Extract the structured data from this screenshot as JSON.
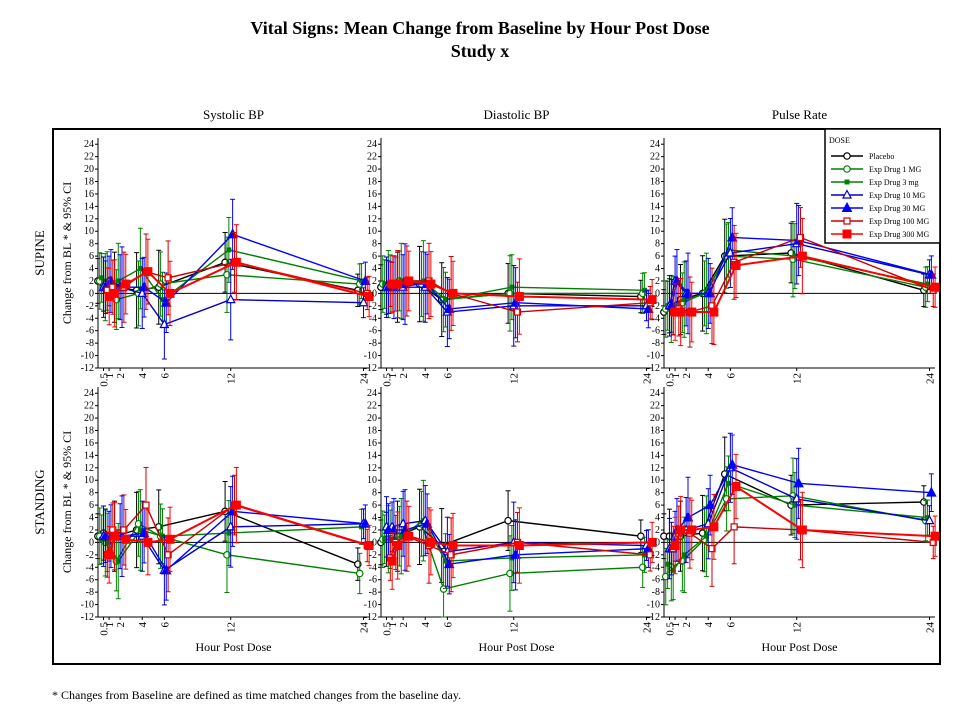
{
  "title": "Vital Signs: Mean Change from Baseline by Hour Post Dose",
  "subtitle": "Study x",
  "footnote": "* Changes from Baseline are defined as time matched changes from the baseline day.",
  "chart_data": {
    "type": "line",
    "ylabel": "Change from BL * & 95% CI",
    "xlabel": "Hour Post Dose",
    "columns": [
      "Systolic BP",
      "Diastolic BP",
      "Pulse Rate"
    ],
    "rows": [
      "SUPINE",
      "STANDING"
    ],
    "ylim": [
      -12,
      25
    ],
    "yticks": [
      24,
      22,
      20,
      18,
      16,
      14,
      12,
      10,
      8,
      6,
      4,
      2,
      0,
      -2,
      -4,
      -6,
      -8,
      -10,
      -12
    ],
    "xticks": [
      {
        "v": 0.5,
        "label": "0.5"
      },
      {
        "v": 1,
        "label": "1"
      },
      {
        "v": 2,
        "label": "2"
      },
      {
        "v": 4,
        "label": "4"
      },
      {
        "v": 6,
        "label": "6"
      },
      {
        "v": 12,
        "label": "12"
      },
      {
        "v": 24,
        "label": "24"
      }
    ],
    "legend": {
      "title": "DOSE",
      "placement": "top-right",
      "entries": [
        {
          "name": "Placebo",
          "color": "#000000",
          "marker": "circle"
        },
        {
          "name": "Exp Drug 1 MG",
          "color": "#008000",
          "marker": "circle"
        },
        {
          "name": "Exp Drug 3 mg",
          "color": "#008000",
          "marker": "square"
        },
        {
          "name": "Exp Drug 10 MG",
          "color": "#0000CC",
          "marker": "triangle-open"
        },
        {
          "name": "Exp Drug 30 MG",
          "color": "#0000FF",
          "marker": "triangle"
        },
        {
          "name": "Exp Drug 100 MG",
          "color": "#CC0000",
          "marker": "square-open"
        },
        {
          "name": "Exp Drug 300 MG",
          "color": "#FF0000",
          "marker": "square"
        }
      ]
    },
    "x": [
      0.5,
      1,
      2,
      4,
      6,
      12,
      24
    ],
    "panels": [
      {
        "row": "SUPINE",
        "column": "Systolic BP",
        "series": [
          {
            "name": "Placebo",
            "values": [
              2,
              1.5,
              1,
              0.5,
              1,
              5,
              0.5
            ]
          },
          {
            "name": "Exp Drug 1 MG",
            "values": [
              2,
              1,
              -1,
              0,
              1.5,
              3,
              1.5
            ]
          },
          {
            "name": "Exp Drug 3 mg",
            "values": [
              2.5,
              2,
              2,
              4,
              -1,
              7,
              2
            ]
          },
          {
            "name": "Exp Drug 10 MG",
            "values": [
              1,
              2,
              1,
              0,
              -5,
              -1,
              -1.5
            ]
          },
          {
            "name": "Exp Drug 30 MG",
            "values": [
              1,
              2,
              1,
              1,
              -1.5,
              9.5,
              2
            ]
          },
          {
            "name": "Exp Drug 100 MG",
            "values": [
              0.5,
              1,
              1,
              3.5,
              2.5,
              5,
              0
            ]
          },
          {
            "name": "Exp Drug 300 MG",
            "values": [
              -0.5,
              0,
              1.5,
              3.5,
              0,
              5,
              -0.5
            ]
          }
        ]
      },
      {
        "row": "SUPINE",
        "column": "Diastolic BP",
        "series": [
          {
            "name": "Placebo",
            "values": [
              1,
              1,
              1,
              1.5,
              -1,
              0,
              -0.5
            ]
          },
          {
            "name": "Exp Drug 1 MG",
            "values": [
              1.5,
              1.5,
              2,
              1.5,
              -1,
              0,
              0
            ]
          },
          {
            "name": "Exp Drug 3 mg",
            "values": [
              1.5,
              1.5,
              2,
              2,
              -1,
              1,
              0.5
            ]
          },
          {
            "name": "Exp Drug 10 MG",
            "values": [
              1,
              1,
              1,
              1,
              -3,
              -2,
              -2
            ]
          },
          {
            "name": "Exp Drug 30 MG",
            "values": [
              1,
              1,
              1.5,
              1.5,
              -2.5,
              -1.5,
              -2.5
            ]
          },
          {
            "name": "Exp Drug 100 MG",
            "values": [
              1.5,
              1.5,
              2,
              2,
              0,
              -3,
              -1.5
            ]
          },
          {
            "name": "Exp Drug 300 MG",
            "values": [
              1.5,
              1.5,
              2,
              1.5,
              0,
              -0.5,
              -1
            ]
          }
        ]
      },
      {
        "row": "SUPINE",
        "column": "Pulse Rate",
        "series": [
          {
            "name": "Placebo",
            "values": [
              -3,
              -2,
              -1,
              0,
              6,
              6.5,
              0.5
            ]
          },
          {
            "name": "Exp Drug 1 MG",
            "values": [
              -2.5,
              -2.5,
              -1.5,
              0,
              6,
              5.5,
              1
            ]
          },
          {
            "name": "Exp Drug 3 mg",
            "values": [
              -2,
              -2,
              -1,
              0,
              7,
              6,
              1.5
            ]
          },
          {
            "name": "Exp Drug 10 MG",
            "values": [
              -2,
              2,
              0,
              0,
              6.5,
              8,
              3
            ]
          },
          {
            "name": "Exp Drug 30 MG",
            "values": [
              -2,
              2,
              0,
              0,
              9,
              8.5,
              3
            ]
          },
          {
            "name": "Exp Drug 100 MG",
            "values": [
              -3,
              -2.5,
              -3,
              -2,
              5,
              9,
              0.5
            ]
          },
          {
            "name": "Exp Drug 300 MG",
            "values": [
              -3,
              -3,
              -3,
              -3,
              4.5,
              6,
              1
            ]
          }
        ]
      },
      {
        "row": "STANDING",
        "column": "Systolic BP",
        "series": [
          {
            "name": "Placebo",
            "values": [
              1,
              1.5,
              1,
              2,
              2.5,
              5,
              -3.5
            ]
          },
          {
            "name": "Exp Drug 1 MG",
            "values": [
              1,
              0,
              -3,
              3,
              1,
              -2,
              -5
            ]
          },
          {
            "name": "Exp Drug 3 mg",
            "values": [
              0.5,
              0,
              -3,
              2,
              1,
              1.5,
              2.5
            ]
          },
          {
            "name": "Exp Drug 10 MG",
            "values": [
              1,
              1,
              1,
              1,
              -4.5,
              2.5,
              3
            ]
          },
          {
            "name": "Exp Drug 30 MG",
            "values": [
              1,
              1,
              1,
              1.5,
              -4.5,
              5,
              3
            ]
          },
          {
            "name": "Exp Drug 100 MG",
            "values": [
              -2,
              2,
              2,
              6,
              -2,
              6,
              -0.5
            ]
          },
          {
            "name": "Exp Drug 300 MG",
            "values": [
              -2,
              1,
              0.5,
              0,
              0.5,
              6,
              -0.5
            ]
          }
        ]
      },
      {
        "row": "STANDING",
        "column": "Diastolic BP",
        "series": [
          {
            "name": "Placebo",
            "values": [
              0,
              0.5,
              1,
              2.5,
              -0.5,
              3.5,
              1
            ]
          },
          {
            "name": "Exp Drug 1 MG",
            "values": [
              0.5,
              0.5,
              1,
              3,
              -7.5,
              -5,
              -4
            ]
          },
          {
            "name": "Exp Drug 3 mg",
            "values": [
              0.5,
              0.5,
              1,
              3.5,
              -3,
              -2.5,
              -2
            ]
          },
          {
            "name": "Exp Drug 10 MG",
            "values": [
              2.5,
              2.5,
              3,
              3.5,
              -1.5,
              0,
              -0.5
            ]
          },
          {
            "name": "Exp Drug 30 MG",
            "values": [
              2,
              2,
              2,
              3,
              -3.5,
              -2,
              -1
            ]
          },
          {
            "name": "Exp Drug 100 MG",
            "values": [
              -2.5,
              0,
              1,
              -0.5,
              -2,
              0,
              -2
            ]
          },
          {
            "name": "Exp Drug 300 MG",
            "values": [
              -3,
              -0.5,
              1,
              0,
              -0.5,
              -0.5,
              0
            ]
          }
        ]
      },
      {
        "row": "STANDING",
        "column": "Pulse Rate",
        "series": [
          {
            "name": "Placebo",
            "values": [
              1,
              1,
              1,
              1.5,
              11,
              6,
              6.5
            ]
          },
          {
            "name": "Exp Drug 1 MG",
            "values": [
              -5.5,
              -4,
              -3,
              0.5,
              7,
              7.5,
              3.5
            ]
          },
          {
            "name": "Exp Drug 3 mg",
            "values": [
              -3.5,
              -4.5,
              -2,
              1,
              9.5,
              6,
              4
            ]
          },
          {
            "name": "Exp Drug 10 MG",
            "values": [
              -1,
              1,
              2,
              3,
              12,
              7,
              3.5
            ]
          },
          {
            "name": "Exp Drug 30 MG",
            "values": [
              -1,
              2,
              4,
              6,
              12.5,
              9.5,
              8
            ]
          },
          {
            "name": "Exp Drug 100 MG",
            "values": [
              -1,
              1.5,
              1.5,
              -1,
              2.5,
              2,
              0
            ]
          },
          {
            "name": "Exp Drug 300 MG",
            "values": [
              -0.5,
              2,
              2,
              2.5,
              9,
              2,
              1
            ]
          }
        ]
      }
    ]
  }
}
